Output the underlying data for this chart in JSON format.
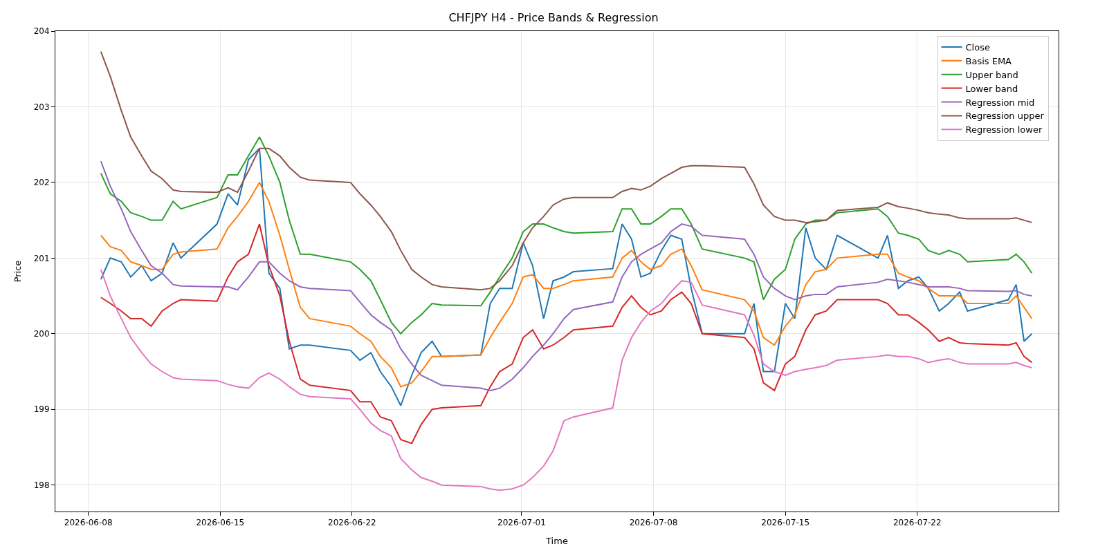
{
  "chart_data": {
    "type": "line",
    "title": "CHFJPY H4 - Price Bands & Regression",
    "xlabel": "Time",
    "ylabel": "Price",
    "x": [
      "2026-06-08T16:00",
      "2026-06-09T04:00",
      "2026-06-09T18:00",
      "2026-06-10T06:00",
      "2026-06-10T20:00",
      "2026-06-11T08:00",
      "2026-06-11T22:00",
      "2026-06-12T12:00",
      "2026-06-12T22:00",
      "2026-06-14T20:00",
      "2026-06-15T10:00",
      "2026-06-15T22:00",
      "2026-06-16T12:00",
      "2026-06-17T02:00",
      "2026-06-17T14:00",
      "2026-06-18T04:00",
      "2026-06-18T16:00",
      "2026-06-19T06:00",
      "2026-06-19T18:00",
      "2026-06-21T22:00",
      "2026-06-22T10:00",
      "2026-06-23T00:00",
      "2026-06-23T12:00",
      "2026-06-24T02:00",
      "2026-06-24T14:00",
      "2026-06-25T04:00",
      "2026-06-25T16:00",
      "2026-06-26T06:00",
      "2026-06-26T18:00",
      "2026-06-28T20:00",
      "2026-06-29T08:00",
      "2026-06-29T20:00",
      "2026-06-30T12:00",
      "2026-07-01T02:00",
      "2026-07-01T14:00",
      "2026-07-02T04:00",
      "2026-07-02T16:00",
      "2026-07-03T06:00",
      "2026-07-03T18:00",
      "2026-07-05T20:00",
      "2026-07-06T08:00",
      "2026-07-06T20:00",
      "2026-07-07T08:00",
      "2026-07-07T20:00",
      "2026-07-08T10:00",
      "2026-07-08T22:00",
      "2026-07-09T12:00",
      "2026-07-10T00:00",
      "2026-07-10T14:00",
      "2026-07-12T20:00",
      "2026-07-13T08:00",
      "2026-07-13T20:00",
      "2026-07-14T10:00",
      "2026-07-15T00:00",
      "2026-07-15T12:00",
      "2026-07-16T02:00",
      "2026-07-16T14:00",
      "2026-07-17T04:00",
      "2026-07-17T18:00",
      "2026-07-19T22:00",
      "2026-07-20T10:00",
      "2026-07-21T00:00",
      "2026-07-21T12:00",
      "2026-07-22T02:00",
      "2026-07-22T14:00",
      "2026-07-23T04:00",
      "2026-07-23T16:00",
      "2026-07-24T06:00",
      "2026-07-24T16:00",
      "2026-07-26T20:00",
      "2026-07-27T06:00",
      "2026-07-27T16:00",
      "2026-07-28T02:00"
    ],
    "series": [
      {
        "name": "Close",
        "color": "#1f77b4",
        "values": [
          200.72,
          201.0,
          200.95,
          200.75,
          200.9,
          200.7,
          200.8,
          201.2,
          201.0,
          201.45,
          201.85,
          201.7,
          202.3,
          202.45,
          200.8,
          200.6,
          199.8,
          199.85,
          199.85,
          199.78,
          199.65,
          199.75,
          199.5,
          199.3,
          199.05,
          199.45,
          199.75,
          199.9,
          199.7,
          199.72,
          200.4,
          200.6,
          200.6,
          201.2,
          200.9,
          200.2,
          200.7,
          200.75,
          200.82,
          200.86,
          201.45,
          201.25,
          200.75,
          200.8,
          201.1,
          201.3,
          201.25,
          200.6,
          200.0,
          200.0,
          200.4,
          199.5,
          199.5,
          200.4,
          200.2,
          201.4,
          201.0,
          200.85,
          201.3,
          201.0,
          201.3,
          200.6,
          200.7,
          200.75,
          200.6,
          200.3,
          200.4,
          200.55,
          200.3,
          200.45,
          200.65,
          199.9,
          200.0
        ]
      },
      {
        "name": "Basis EMA",
        "color": "#ff7f0e",
        "values": [
          201.3,
          201.15,
          201.1,
          200.95,
          200.9,
          200.85,
          200.85,
          201.05,
          201.08,
          201.12,
          201.4,
          201.55,
          201.75,
          202.0,
          201.75,
          201.3,
          200.85,
          200.35,
          200.2,
          200.1,
          200.0,
          199.9,
          199.7,
          199.55,
          199.3,
          199.35,
          199.5,
          199.7,
          199.7,
          199.72,
          199.95,
          200.15,
          200.4,
          200.75,
          200.78,
          200.6,
          200.6,
          200.65,
          200.7,
          200.75,
          201.0,
          201.1,
          200.95,
          200.85,
          200.9,
          201.05,
          201.12,
          200.9,
          200.58,
          200.45,
          200.3,
          199.95,
          199.85,
          200.1,
          200.25,
          200.65,
          200.82,
          200.85,
          201.0,
          201.05,
          201.05,
          200.8,
          200.75,
          200.7,
          200.6,
          200.5,
          200.5,
          200.5,
          200.4,
          200.4,
          200.5,
          200.35,
          200.2
        ]
      },
      {
        "name": "Upper band",
        "color": "#2ca02c",
        "values": [
          202.12,
          201.85,
          201.75,
          201.6,
          201.55,
          201.5,
          201.5,
          201.75,
          201.65,
          201.8,
          202.1,
          202.1,
          202.35,
          202.6,
          202.35,
          202.0,
          201.5,
          201.05,
          201.05,
          200.95,
          200.85,
          200.7,
          200.45,
          200.15,
          200.0,
          200.15,
          200.25,
          200.4,
          200.38,
          200.37,
          200.55,
          200.75,
          201.0,
          201.35,
          201.45,
          201.45,
          201.4,
          201.35,
          201.33,
          201.35,
          201.65,
          201.65,
          201.45,
          201.45,
          201.55,
          201.65,
          201.65,
          201.45,
          201.12,
          201.0,
          200.95,
          200.45,
          200.72,
          200.85,
          201.25,
          201.45,
          201.5,
          201.5,
          201.6,
          201.65,
          201.55,
          201.33,
          201.3,
          201.25,
          201.1,
          201.05,
          201.1,
          201.05,
          200.95,
          200.98,
          201.05,
          200.95,
          200.8
        ]
      },
      {
        "name": "Lower band",
        "color": "#d62728",
        "values": [
          200.48,
          200.4,
          200.3,
          200.2,
          200.2,
          200.1,
          200.3,
          200.4,
          200.45,
          200.43,
          200.75,
          200.95,
          201.05,
          201.45,
          200.9,
          200.5,
          199.9,
          199.4,
          199.32,
          199.25,
          199.1,
          199.1,
          198.9,
          198.85,
          198.6,
          198.55,
          198.8,
          199.0,
          199.02,
          199.05,
          199.3,
          199.5,
          199.6,
          199.95,
          200.05,
          199.8,
          199.85,
          199.95,
          200.05,
          200.1,
          200.35,
          200.5,
          200.35,
          200.25,
          200.3,
          200.45,
          200.55,
          200.4,
          200.0,
          199.95,
          199.8,
          199.35,
          199.25,
          199.6,
          199.7,
          200.05,
          200.25,
          200.3,
          200.45,
          200.45,
          200.4,
          200.25,
          200.25,
          200.15,
          200.05,
          199.9,
          199.95,
          199.88,
          199.87,
          199.85,
          199.88,
          199.7,
          199.62
        ]
      },
      {
        "name": "Regression mid",
        "color": "#9467bd",
        "values": [
          202.28,
          201.95,
          201.65,
          201.35,
          201.1,
          200.9,
          200.8,
          200.65,
          200.63,
          200.62,
          200.62,
          200.58,
          200.75,
          200.95,
          200.95,
          200.8,
          200.7,
          200.62,
          200.6,
          200.57,
          200.42,
          200.25,
          200.15,
          200.05,
          199.8,
          199.6,
          199.45,
          199.38,
          199.32,
          199.28,
          199.25,
          199.28,
          199.4,
          199.55,
          199.7,
          199.85,
          200.0,
          200.2,
          200.32,
          200.42,
          200.75,
          200.95,
          201.05,
          201.12,
          201.2,
          201.35,
          201.45,
          201.42,
          201.3,
          201.25,
          201.05,
          200.75,
          200.6,
          200.5,
          200.45,
          200.5,
          200.52,
          200.52,
          200.62,
          200.68,
          200.72,
          200.7,
          200.68,
          200.65,
          200.62,
          200.62,
          200.62,
          200.6,
          200.57,
          200.56,
          200.57,
          200.52,
          200.5
        ]
      },
      {
        "name": "Regression upper",
        "color": "#8c564b",
        "values": [
          203.73,
          203.4,
          202.95,
          202.6,
          202.35,
          202.15,
          202.05,
          201.9,
          201.88,
          201.87,
          201.93,
          201.87,
          202.15,
          202.45,
          202.45,
          202.35,
          202.2,
          202.07,
          202.03,
          202.0,
          201.85,
          201.7,
          201.55,
          201.35,
          201.1,
          200.85,
          200.75,
          200.65,
          200.62,
          200.58,
          200.6,
          200.7,
          200.9,
          201.2,
          201.4,
          201.55,
          201.7,
          201.78,
          201.8,
          201.8,
          201.88,
          201.92,
          201.9,
          201.95,
          202.05,
          202.12,
          202.2,
          202.22,
          202.22,
          202.2,
          201.98,
          201.7,
          201.55,
          201.5,
          201.5,
          201.47,
          201.48,
          201.5,
          201.63,
          201.67,
          201.73,
          201.68,
          201.66,
          201.63,
          201.6,
          201.58,
          201.57,
          201.53,
          201.52,
          201.52,
          201.53,
          201.5,
          201.47
        ]
      },
      {
        "name": "Regression lower",
        "color": "#e377c2",
        "values": [
          200.85,
          200.5,
          200.2,
          199.95,
          199.75,
          199.6,
          199.5,
          199.42,
          199.4,
          199.38,
          199.33,
          199.3,
          199.28,
          199.42,
          199.48,
          199.4,
          199.3,
          199.2,
          199.17,
          199.14,
          199.0,
          198.82,
          198.72,
          198.65,
          198.35,
          198.2,
          198.1,
          198.05,
          198.0,
          197.98,
          197.95,
          197.93,
          197.95,
          198.0,
          198.1,
          198.25,
          198.45,
          198.85,
          198.9,
          199.02,
          199.65,
          199.95,
          200.15,
          200.3,
          200.4,
          200.55,
          200.7,
          200.68,
          200.38,
          200.25,
          199.98,
          199.6,
          199.5,
          199.45,
          199.5,
          199.53,
          199.55,
          199.58,
          199.65,
          199.7,
          199.72,
          199.7,
          199.7,
          199.67,
          199.62,
          199.65,
          199.67,
          199.62,
          199.6,
          199.6,
          199.62,
          199.58,
          199.55
        ]
      }
    ],
    "xlim": [
      "2026-06-06T06:00",
      "2026-07-29T12:00"
    ],
    "xticks": [
      {
        "value": "2026-06-08",
        "label": "2026-06-08"
      },
      {
        "value": "2026-06-15",
        "label": "2026-06-15"
      },
      {
        "value": "2026-06-22",
        "label": "2026-06-22"
      },
      {
        "value": "2026-07-01",
        "label": "2026-07-01"
      },
      {
        "value": "2026-07-08",
        "label": "2026-07-08"
      },
      {
        "value": "2026-07-15",
        "label": "2026-07-15"
      },
      {
        "value": "2026-07-22",
        "label": "2026-07-22"
      }
    ],
    "ylim": [
      197.65,
      204.0
    ],
    "yticks": [
      198,
      199,
      200,
      201,
      202,
      203,
      204
    ],
    "grid": true,
    "legend": "top right",
    "marker": "none",
    "line_style": "solid"
  }
}
